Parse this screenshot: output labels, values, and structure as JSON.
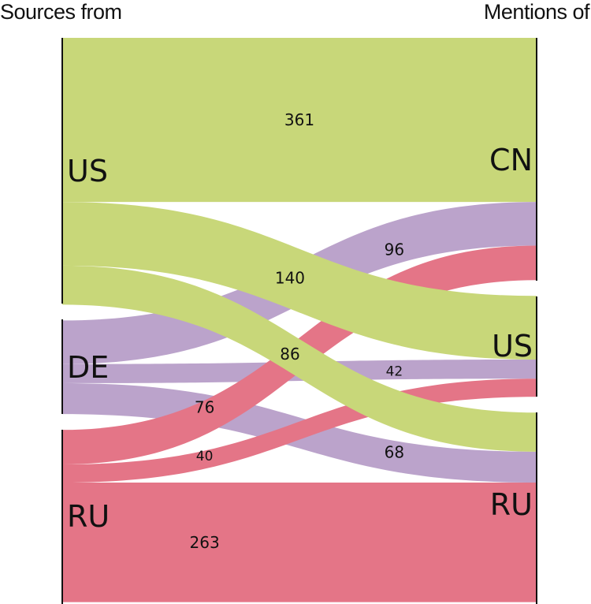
{
  "headers": {
    "left": "Sources from",
    "right": "Mentions of"
  },
  "colors": {
    "US": "#c8d779",
    "DE": "#bba3cb",
    "RU": "#e47587",
    "axis": "#111111"
  },
  "chart_data": {
    "type": "sankey",
    "sources": [
      "US",
      "DE",
      "RU"
    ],
    "targets": [
      "CN",
      "US",
      "RU"
    ],
    "flows": [
      {
        "source": "US",
        "target": "CN",
        "value": 361,
        "label": "361"
      },
      {
        "source": "US",
        "target": "US",
        "value": 140,
        "label": "140"
      },
      {
        "source": "US",
        "target": "RU",
        "value": 86,
        "label": "86"
      },
      {
        "source": "DE",
        "target": "CN",
        "value": 96,
        "label": "96"
      },
      {
        "source": "DE",
        "target": "US",
        "value": 42,
        "label": "42"
      },
      {
        "source": "DE",
        "target": "RU",
        "value": 68,
        "label": "68"
      },
      {
        "source": "RU",
        "target": "CN",
        "value": 76,
        "label": "76"
      },
      {
        "source": "RU",
        "target": "US",
        "value": 40,
        "label": "40"
      },
      {
        "source": "RU",
        "target": "RU",
        "value": 263,
        "label": "263"
      }
    ]
  }
}
